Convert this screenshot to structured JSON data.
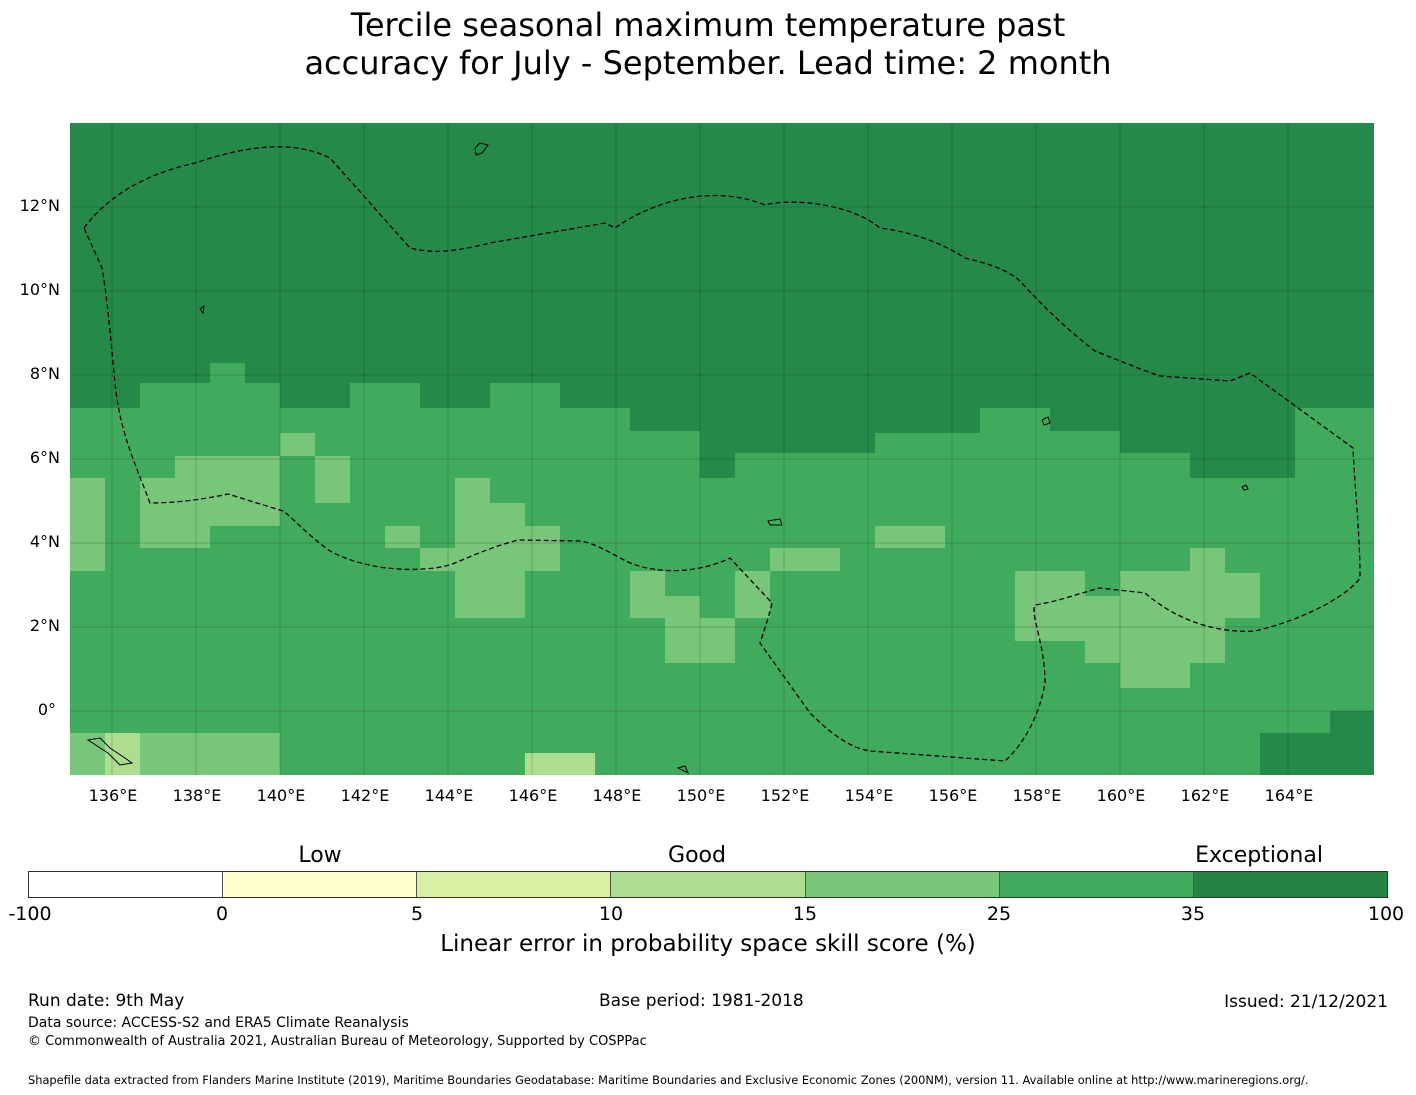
{
  "title_line1": "Tercile seasonal maximum temperature past",
  "title_line2": "accuracy for July - September. Lead time: 2 month",
  "map": {
    "lat_labels": [
      "12°N",
      "10°N",
      "8°N",
      "6°N",
      "4°N",
      "2°N",
      "0°"
    ],
    "lon_labels": [
      "136°E",
      "138°E",
      "140°E",
      "142°E",
      "144°E",
      "146°E",
      "148°E",
      "150°E",
      "152°E",
      "154°E",
      "156°E",
      "158°E",
      "160°E",
      "162°E",
      "164°E"
    ],
    "dominant_band": "Exceptional (north) grading to Good (south)"
  },
  "legend": {
    "category_labels": [
      "Low",
      "Good",
      "Exceptional"
    ],
    "ticks": [
      "-100",
      "0",
      "5",
      "10",
      "15",
      "25",
      "35",
      "100"
    ],
    "colors": [
      "#ffffff",
      "#ffffcc",
      "#d9f0a3",
      "#addd8e",
      "#78c679",
      "#41ab5d",
      "#238443"
    ],
    "label": "Linear error in probability space skill score (%)"
  },
  "footer": {
    "run_date": "Run date: 9th May",
    "base_period": "Base period: 1981-2018",
    "issued": "Issued: 21/12/2021",
    "data_source": "Data source: ACCESS-S2 and ERA5 Climate Reanalysis",
    "copyright": "© Commonwealth of Australia 2021, Australian Bureau of Meteorology, Supported by COSPPac",
    "shapefile": "Shapefile data extracted from Flanders Marine Institute (2019), Maritime Boundaries Geodatabase: Maritime Boundaries and Exclusive Economic Zones (200NM), version 11. Available online at http://www.marineregions.org/."
  }
}
